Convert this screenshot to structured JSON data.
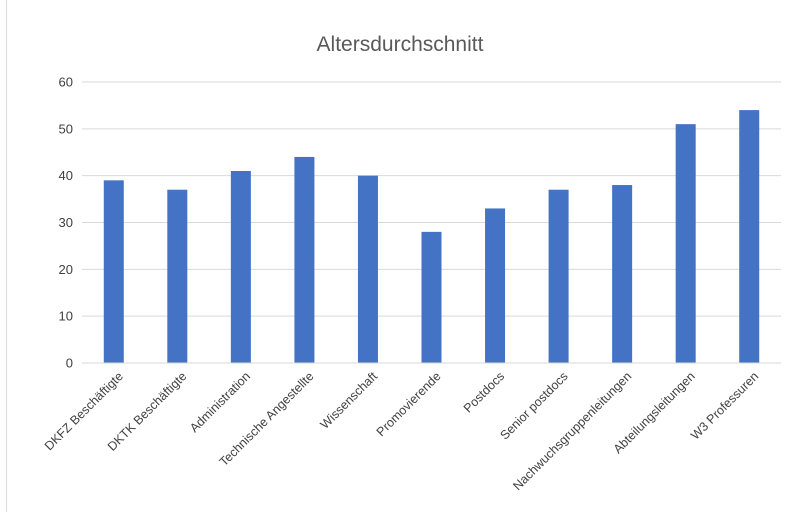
{
  "chart_data": {
    "type": "bar",
    "title": "Altersdurchschnitt",
    "xlabel": "",
    "ylabel": "",
    "categories": [
      "DKFZ Beschäftigte",
      "DKTK Beschäftigte",
      "Administration",
      "Technische Angestellte",
      "Wissenschaft",
      "Promovierende",
      "Postdocs",
      "Senior postdocs",
      "Nachwuchsgruppenleitungen",
      "Abteilungsleitungen",
      "W3 Professuren"
    ],
    "values": [
      39,
      37,
      41,
      44,
      40,
      28,
      33,
      37,
      38,
      51,
      54
    ],
    "ylim": [
      0,
      60
    ],
    "yticks": [
      0,
      10,
      20,
      30,
      40,
      50,
      60
    ],
    "grid": true,
    "legend": "none",
    "colors": {
      "bar": "#4472c4",
      "grid": "#d9d9d9",
      "text": "#404040",
      "title": "#595959"
    }
  }
}
